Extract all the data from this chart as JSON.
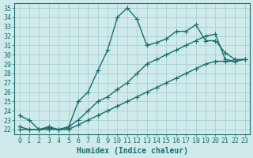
{
  "xlabel": "Humidex (Indice chaleur)",
  "bg_color": "#ceeaea",
  "grid_color": "#aacfcf",
  "line_color": "#1a6e6e",
  "xlim": [
    -0.5,
    23.5
  ],
  "ylim": [
    21.5,
    35.5
  ],
  "xticks": [
    0,
    1,
    2,
    3,
    4,
    5,
    6,
    7,
    8,
    9,
    10,
    11,
    12,
    13,
    14,
    15,
    16,
    17,
    18,
    19,
    20,
    21,
    22,
    23
  ],
  "yticks": [
    22,
    23,
    24,
    25,
    26,
    27,
    28,
    29,
    30,
    31,
    32,
    33,
    34,
    35
  ],
  "line1_x": [
    0,
    1,
    2,
    3,
    4,
    5,
    6,
    7,
    8,
    9,
    10,
    11,
    12,
    13,
    14,
    15,
    16,
    17,
    18,
    19,
    20,
    21,
    22,
    23
  ],
  "line1_y": [
    23.5,
    23.0,
    22.0,
    22.2,
    22.0,
    22.2,
    25.0,
    26.0,
    28.3,
    30.5,
    34.0,
    35.0,
    33.8,
    31.0,
    31.3,
    31.7,
    32.5,
    32.5,
    33.2,
    31.5,
    31.5,
    30.2,
    29.5,
    29.5
  ],
  "line2_x": [
    0,
    1,
    2,
    3,
    4,
    5,
    6,
    7,
    8,
    9,
    10,
    11,
    12,
    13,
    14,
    15,
    16,
    17,
    18,
    19,
    20,
    21,
    22,
    23
  ],
  "line2_y": [
    22.3,
    22.0,
    22.0,
    22.3,
    22.0,
    22.3,
    23.0,
    24.0,
    25.0,
    25.5,
    26.3,
    27.0,
    28.0,
    29.0,
    29.5,
    30.0,
    30.5,
    31.0,
    31.5,
    32.0,
    32.2,
    29.5,
    29.3,
    29.5
  ],
  "line3_x": [
    0,
    1,
    2,
    3,
    4,
    5,
    6,
    7,
    8,
    9,
    10,
    11,
    12,
    13,
    14,
    15,
    16,
    17,
    18,
    19,
    20,
    21,
    22,
    23
  ],
  "line3_y": [
    22.0,
    22.0,
    22.0,
    22.0,
    22.0,
    22.0,
    22.5,
    23.0,
    23.5,
    24.0,
    24.5,
    25.0,
    25.5,
    26.0,
    26.5,
    27.0,
    27.5,
    28.0,
    28.5,
    29.0,
    29.3,
    29.3,
    29.3,
    29.5
  ],
  "marker": "+",
  "marker_size": 4,
  "line_width": 1.0,
  "font_size": 7
}
